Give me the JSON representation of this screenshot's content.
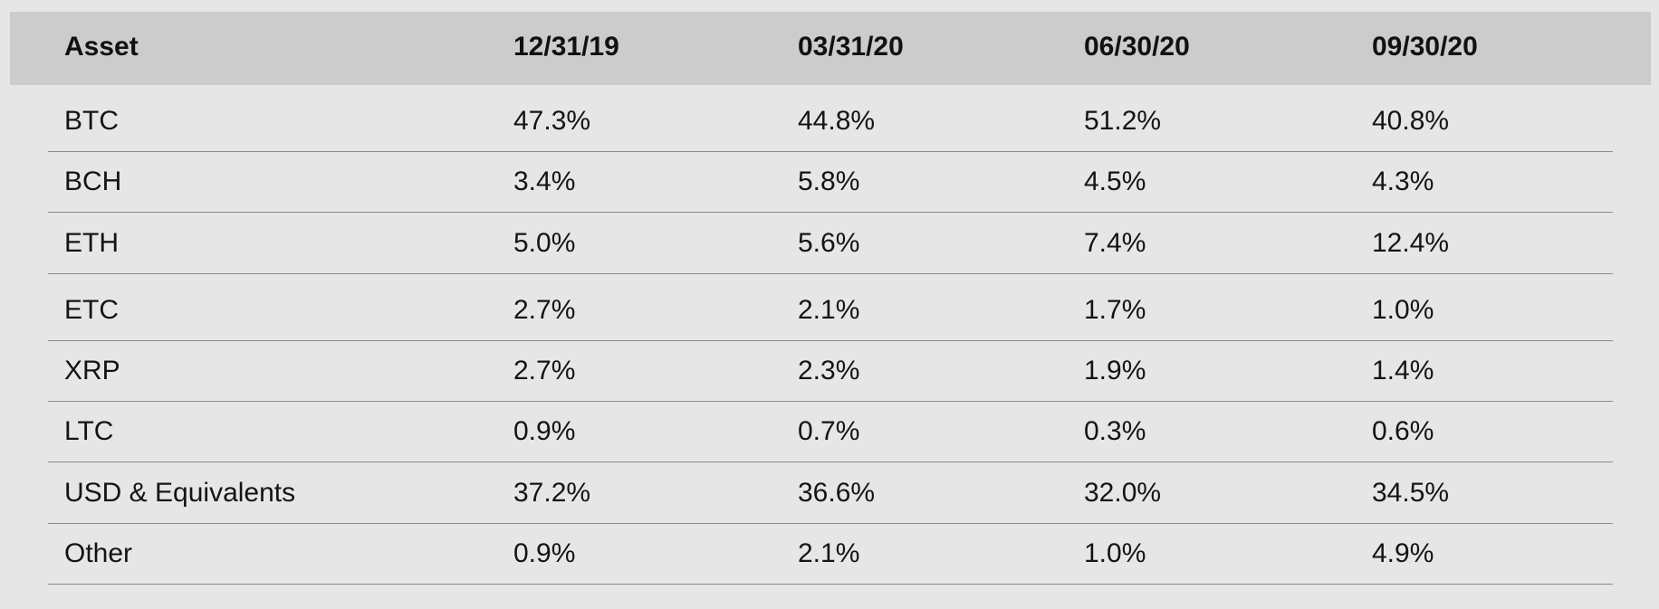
{
  "table": {
    "headers": [
      "Asset",
      "12/31/19",
      "03/31/20",
      "06/30/20",
      "09/30/20"
    ],
    "rows": [
      [
        "BTC",
        "47.3%",
        "44.8%",
        "51.2%",
        "40.8%"
      ],
      [
        "BCH",
        "3.4%",
        "5.8%",
        "4.5%",
        "4.3%"
      ],
      [
        "ETH",
        "5.0%",
        "5.6%",
        "7.4%",
        "12.4%"
      ],
      [
        "ETC",
        "2.7%",
        "2.1%",
        "1.7%",
        "1.0%"
      ],
      [
        "XRP",
        "2.7%",
        "2.3%",
        "1.9%",
        "1.4%"
      ],
      [
        "LTC",
        "0.9%",
        "0.7%",
        "0.3%",
        "0.6%"
      ],
      [
        "USD & Equivalents",
        "37.2%",
        "36.6%",
        "32.0%",
        "34.5%"
      ],
      [
        "Other",
        "0.9%",
        "2.1%",
        "1.0%",
        "4.9%"
      ]
    ]
  },
  "colors": {
    "background": "#e6e6e6",
    "header_background": "#cccccc",
    "rule": "#8a8a8a",
    "text": "#141414"
  }
}
